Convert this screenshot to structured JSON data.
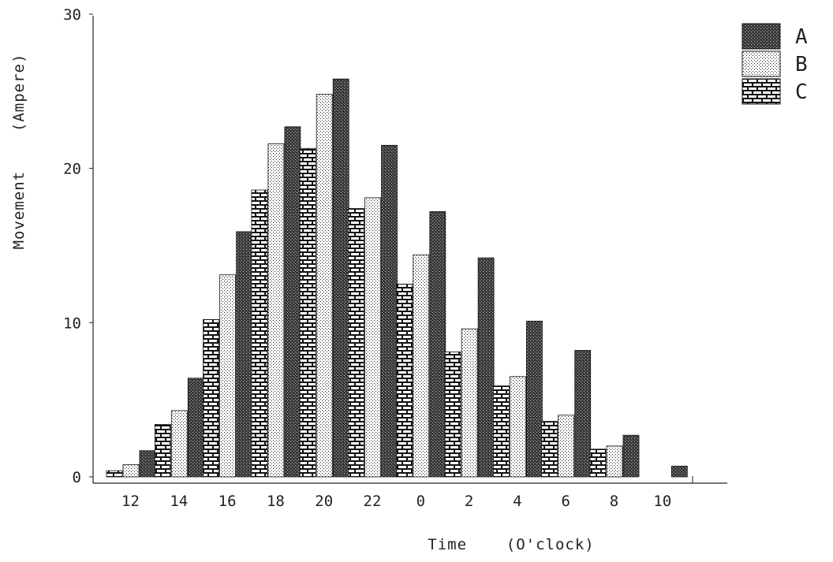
{
  "chart_data": {
    "type": "bar",
    "xlabel": "Time    (O'clock)",
    "ylabel": "Movement    (Ampere)",
    "ylim": [
      0,
      30
    ],
    "yticks": [
      "0",
      "10",
      "20",
      "30"
    ],
    "categories": [
      "12",
      "14",
      "16",
      "18",
      "20",
      "22",
      "0",
      "2",
      "4",
      "6",
      "8",
      "10"
    ],
    "series": [
      {
        "name": "C",
        "pattern": "brick",
        "values": [
          0.4,
          3.4,
          10.2,
          18.6,
          21.3,
          17.4,
          12.5,
          8.1,
          5.9,
          3.6,
          1.8,
          0
        ]
      },
      {
        "name": "B",
        "pattern": "dots",
        "values": [
          0.8,
          4.3,
          13.1,
          21.6,
          24.8,
          18.1,
          14.4,
          9.6,
          6.5,
          4.0,
          2.0,
          0
        ]
      },
      {
        "name": "A",
        "pattern": "dark-stipple",
        "values": [
          1.7,
          6.4,
          15.9,
          22.7,
          25.8,
          21.5,
          17.2,
          14.2,
          10.1,
          8.2,
          2.7,
          0.7
        ]
      }
    ],
    "legend_order": [
      "A",
      "B",
      "C"
    ],
    "legend_position": "top-right",
    "grid": false
  }
}
